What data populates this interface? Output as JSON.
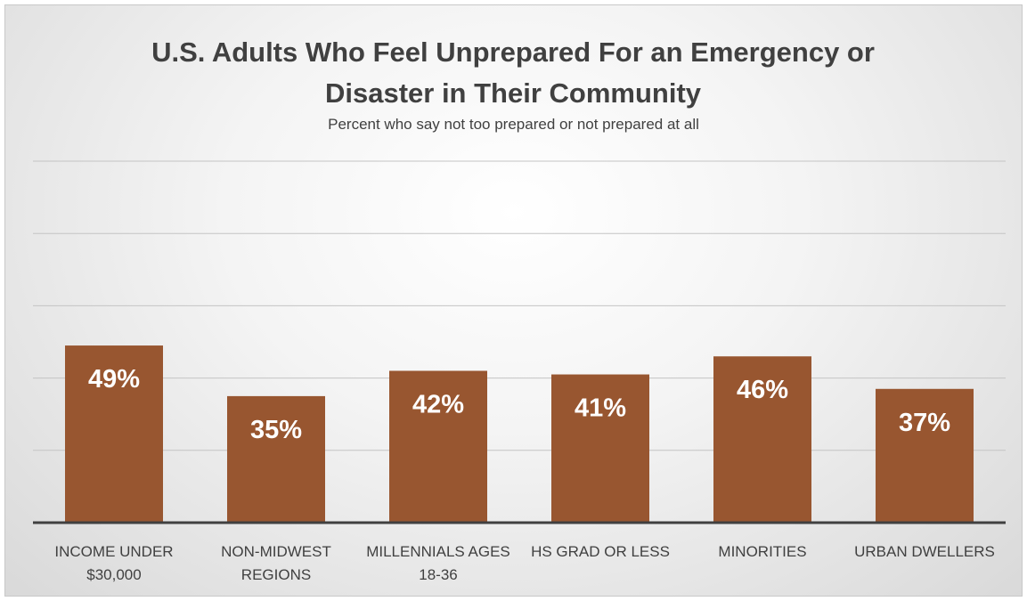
{
  "chart_data": {
    "type": "bar",
    "title": "U.S. Adults Who Feel Unprepared For an Emergency or Disaster in Their Community",
    "subtitle": "Percent who say not too prepared or not prepared at all",
    "categories": [
      "INCOME UNDER $30,000",
      "NON-MIDWEST REGIONS",
      "MILLENNIALS AGES 18-36",
      "HS GRAD OR LESS",
      "MINORITIES",
      "URBAN DWELLERS"
    ],
    "values": [
      49,
      35,
      42,
      41,
      46,
      37
    ],
    "value_labels": [
      "49%",
      "35%",
      "42%",
      "41%",
      "46%",
      "37%"
    ],
    "color": "#985630",
    "ylim": [
      0,
      100
    ],
    "yticks": [
      0,
      20,
      40,
      60,
      80,
      100
    ],
    "grid": true
  }
}
